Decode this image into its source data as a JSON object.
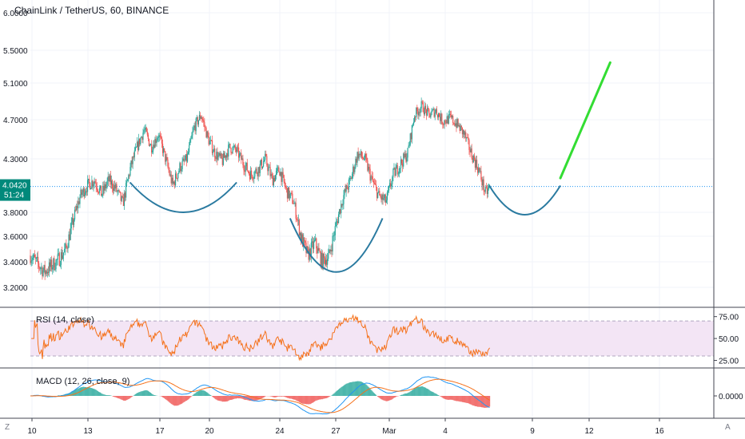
{
  "header": {
    "title": "ChainLink / TetherUS, 60, BINANCE"
  },
  "indicators": {
    "rsi_label": "RSI (14, close)",
    "macd_label": "MACD (12, 26, close, 9)"
  },
  "corners": {
    "left": "Z",
    "right": "A"
  },
  "colors": {
    "up": "#26a69a",
    "down": "#ef5350",
    "price_line": "#2196f3",
    "price_badge": "#00897b",
    "cup_curves": "#2a7aa0",
    "projection": "#33dd33",
    "rsi_line": "#f5721c",
    "rsi_band": "#f3e5f5",
    "macd_line": "#2196f3",
    "signal_line": "#f5721c"
  },
  "chart_data": [
    {
      "type": "candlestick",
      "title": "ChainLink / TetherUS, 60, BINANCE",
      "yaxis": {
        "ticks": [
          3.2,
          3.4,
          3.6,
          3.8,
          4.3,
          4.7,
          5.1,
          5.5,
          6.0
        ],
        "tick_labels": [
          "3.2000",
          "3.4000",
          "3.6000",
          "3.8000",
          "4.3000",
          "4.7000",
          "5.1000",
          "5.5000",
          "6.0000"
        ]
      },
      "xaxis": {
        "tick_labels": [
          "10",
          "13",
          "17",
          "20",
          "24",
          "27",
          "Mar",
          "4",
          "9",
          "12",
          "16"
        ]
      },
      "last_price": {
        "value": 4.042,
        "label": "4.0420",
        "countdown": "51:24"
      },
      "price_path": [
        [
          0,
          3.45
        ],
        [
          2,
          3.32
        ],
        [
          4,
          3.42
        ],
        [
          5,
          3.5
        ],
        [
          7,
          3.95
        ],
        [
          8,
          4.05
        ],
        [
          9,
          4.1
        ],
        [
          10,
          3.97
        ],
        [
          11,
          4.1
        ],
        [
          12,
          4.02
        ],
        [
          13,
          3.88
        ],
        [
          14,
          4.2
        ],
        [
          15,
          4.42
        ],
        [
          16,
          4.6
        ],
        [
          17,
          4.42
        ],
        [
          18,
          4.55
        ],
        [
          19,
          4.3
        ],
        [
          20,
          4.05
        ],
        [
          21,
          4.22
        ],
        [
          22,
          4.3
        ],
        [
          23,
          4.62
        ],
        [
          24,
          4.75
        ],
        [
          25,
          4.5
        ],
        [
          26,
          4.35
        ],
        [
          27,
          4.28
        ],
        [
          28,
          4.42
        ],
        [
          29,
          4.38
        ],
        [
          30,
          4.25
        ],
        [
          31,
          4.15
        ],
        [
          32,
          4.2
        ],
        [
          33,
          4.3
        ],
        [
          34,
          4.1
        ],
        [
          35,
          4.2
        ],
        [
          36,
          4.0
        ],
        [
          37,
          3.9
        ],
        [
          38,
          3.6
        ],
        [
          39,
          3.45
        ],
        [
          40,
          3.55
        ],
        [
          41,
          3.4
        ],
        [
          42,
          3.45
        ],
        [
          43,
          3.7
        ],
        [
          44,
          3.95
        ],
        [
          45,
          4.1
        ],
        [
          46,
          4.35
        ],
        [
          47,
          4.3
        ],
        [
          48,
          4.1
        ],
        [
          49,
          3.95
        ],
        [
          50,
          3.9
        ],
        [
          51,
          4.15
        ],
        [
          52,
          4.25
        ],
        [
          53,
          4.35
        ],
        [
          54,
          4.75
        ],
        [
          55,
          4.85
        ],
        [
          56,
          4.75
        ],
        [
          57,
          4.8
        ],
        [
          58,
          4.68
        ],
        [
          59,
          4.72
        ],
        [
          60,
          4.65
        ],
        [
          61,
          4.55
        ],
        [
          62,
          4.35
        ],
        [
          63,
          4.2
        ],
        [
          64,
          3.97
        ],
        [
          64.6,
          4.04
        ]
      ],
      "pattern_annotations": [
        {
          "shape": "cup",
          "x": [
            14,
            29
          ],
          "bottom": 3.8,
          "top": 4.08
        },
        {
          "shape": "cup",
          "x": [
            36.5,
            49.5
          ],
          "bottom": 3.32,
          "top": 3.75
        },
        {
          "shape": "cup",
          "x": [
            64.5,
            74.5
          ],
          "bottom": 3.78,
          "top": 4.05
        },
        {
          "shape": "projection",
          "from": [
            74.5,
            4.12
          ],
          "to": [
            81.5,
            5.35
          ]
        }
      ]
    },
    {
      "type": "line",
      "title": "RSI (14, close)",
      "ylim": [
        20,
        82
      ],
      "yaxis": {
        "ticks": [
          25,
          50,
          75
        ],
        "tick_labels": [
          "25.00",
          "50.00",
          "75.00"
        ]
      },
      "bands": [
        30,
        70
      ]
    },
    {
      "type": "line",
      "title": "MACD (12, 26, close, 9)",
      "yaxis": {
        "ticks": [
          0
        ],
        "tick_labels": [
          "0.0000"
        ]
      },
      "series": [
        {
          "name": "MACD"
        },
        {
          "name": "Signal"
        },
        {
          "name": "Histogram"
        }
      ]
    }
  ]
}
